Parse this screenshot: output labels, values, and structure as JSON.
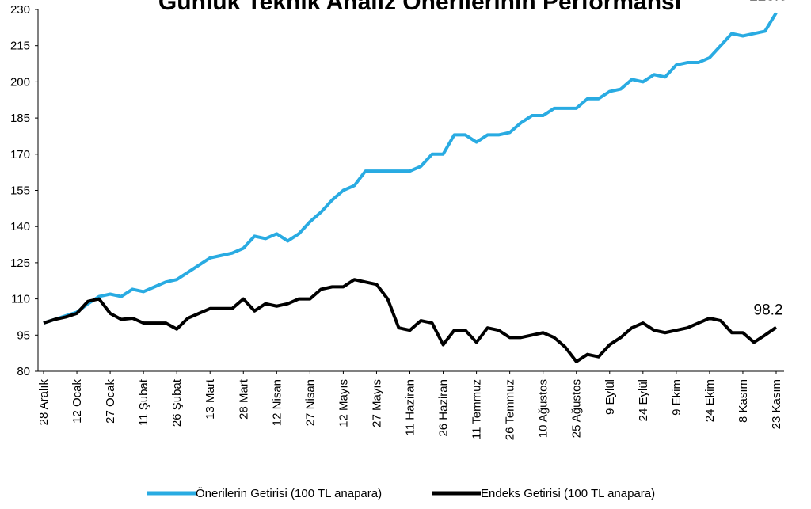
{
  "chart_data": {
    "type": "line",
    "title": "Günlük Teknik Analiz Önerilerinin Performansı",
    "categories": [
      "28 Aralık",
      null,
      null,
      "12 Ocak",
      null,
      null,
      "27 Ocak",
      null,
      null,
      "11 Şubat",
      null,
      null,
      "26 Şubat",
      null,
      null,
      "13 Mart",
      null,
      null,
      "28 Mart",
      null,
      null,
      "12 Nisan",
      null,
      null,
      "27 Nisan",
      null,
      null,
      "12 Mayıs",
      null,
      null,
      "27 Mayıs",
      null,
      null,
      "11 Haziran",
      null,
      null,
      "26 Haziran",
      null,
      null,
      "11 Temmuz",
      null,
      null,
      "26 Temmuz",
      null,
      null,
      "10 Ağustos",
      null,
      null,
      "25 Ağustos",
      null,
      null,
      "9 Eylül",
      null,
      null,
      "24 Eylül",
      null,
      null,
      "9 Ekim",
      null,
      null,
      "24 Ekim",
      null,
      null,
      "8 Kasım",
      null,
      null,
      "23 Kasım"
    ],
    "series": [
      {
        "name": "Önerilerin Getirisi (100 TL anapara)",
        "color": "#29abe2",
        "values": [
          100,
          101.5,
          103,
          104.5,
          108,
          111,
          112,
          111,
          114,
          113,
          115,
          117,
          118,
          121,
          124,
          127,
          128,
          129,
          131,
          136,
          135,
          137,
          134,
          137,
          142,
          146,
          151,
          155,
          157,
          163,
          163,
          163,
          163,
          163,
          165,
          170,
          170,
          178,
          178,
          175,
          178,
          178,
          179,
          183,
          186,
          186,
          189,
          189,
          189,
          193,
          193,
          196,
          197,
          201,
          200,
          203,
          202,
          207,
          208,
          208,
          210,
          215,
          220,
          219,
          220,
          221,
          228.6
        ]
      },
      {
        "name": "Endeks Getirisi (100 TL anapara)",
        "color": "#000000",
        "values": [
          100,
          101.5,
          102.5,
          104,
          109,
          110,
          104,
          101.5,
          102,
          100,
          100,
          100,
          97.5,
          102,
          104,
          106,
          106,
          106,
          110,
          105,
          108,
          107,
          108,
          110,
          110,
          114,
          115,
          115,
          118,
          117,
          116,
          110,
          98,
          97,
          101,
          100,
          91,
          97,
          97,
          92,
          98,
          97,
          94,
          94,
          95,
          96,
          94,
          90,
          84,
          87,
          86,
          91,
          94,
          98,
          100,
          97,
          96,
          97,
          98,
          100,
          102,
          101,
          96,
          96,
          92,
          95,
          98.2
        ]
      }
    ],
    "ylim": [
      80,
      230
    ],
    "yticks": [
      80,
      95,
      110,
      125,
      140,
      155,
      170,
      185,
      200,
      215,
      230
    ],
    "grid": false,
    "legend": "bottom"
  }
}
